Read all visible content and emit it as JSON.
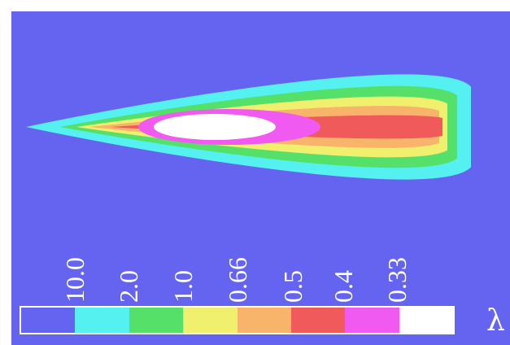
{
  "chart_data": {
    "type": "heatmap",
    "title": "",
    "legend": {
      "levels": [
        "10.0",
        "2.0",
        "1.0",
        "0.66",
        "0.5",
        "0.4",
        "0.33"
      ],
      "colors": [
        "#6464f0",
        "#55f0f0",
        "#55e06a",
        "#f0f06e",
        "#f8b46a",
        "#f05a5a",
        "#f05af0",
        "#ffffff"
      ],
      "symbol": "λ"
    },
    "contours": [
      {
        "level": "10.0",
        "color": "#55f0f0"
      },
      {
        "level": "2.0",
        "color": "#55e06a"
      },
      {
        "level": "1.0",
        "color": "#f0f06e"
      },
      {
        "level": "0.66",
        "color": "#f8b46a"
      },
      {
        "level": "0.5",
        "color": "#f05a5a"
      },
      {
        "level": "0.4",
        "color": "#f05af0"
      },
      {
        "level": "0.33",
        "color": "#ffffff"
      }
    ]
  }
}
